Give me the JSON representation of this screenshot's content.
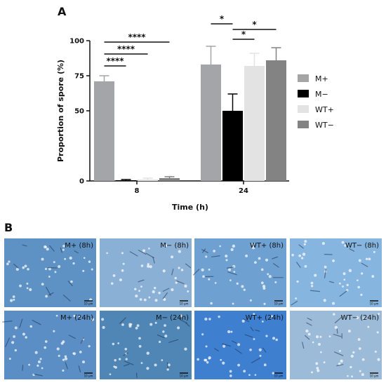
{
  "panel_a_label": "A",
  "panel_b_label": "B",
  "chart_data": {
    "type": "bar",
    "ylabel": "Proportion of spore (%)",
    "xlabel": "Time (h)",
    "categories": [
      "8",
      "24"
    ],
    "ylim": [
      0,
      100
    ],
    "yticks": [
      "0",
      "50",
      "75",
      "100"
    ],
    "yticks_values": [
      0,
      50,
      75,
      100
    ],
    "legend_position": "right",
    "series": [
      {
        "name": "M+",
        "values": [
          71,
          83
        ],
        "errors": [
          4,
          13
        ],
        "color": "#a3a5a8"
      },
      {
        "name": "M−",
        "values": [
          0.5,
          50
        ],
        "errors": [
          0.5,
          12
        ],
        "color": "#000000"
      },
      {
        "name": "WT+",
        "values": [
          1,
          82
        ],
        "errors": [
          1,
          9
        ],
        "color": "#e3e3e3"
      },
      {
        "name": "WT−",
        "values": [
          2,
          86
        ],
        "errors": [
          1,
          9
        ],
        "color": "#838383"
      }
    ],
    "significance": [
      {
        "label": "****",
        "group": "8",
        "from": "M+",
        "to": "M−"
      },
      {
        "label": "****",
        "group": "8",
        "from": "M+",
        "to": "WT+"
      },
      {
        "label": "****",
        "group": "8",
        "from": "M+",
        "to": "WT−"
      },
      {
        "label": "*",
        "group": "24",
        "from": "M+",
        "to": "M−"
      },
      {
        "label": "*",
        "group": "24",
        "from": "M−",
        "to": "WT+"
      },
      {
        "label": "*",
        "group": "24",
        "from": "M−",
        "to": "WT−"
      }
    ]
  },
  "micrographs": {
    "scale_text": "10 μm",
    "rows": [
      [
        {
          "label": "M+ (8h)",
          "color": "#5f92c4"
        },
        {
          "label": "M− (8h)",
          "color": "#8bb0d6"
        },
        {
          "label": "WT+ (8h)",
          "color": "#6ea1d2"
        },
        {
          "label": "WT− (8h)",
          "color": "#86b5df"
        }
      ],
      [
        {
          "label": "M+ (24h)",
          "color": "#5b8ec4"
        },
        {
          "label": "M− (24h)",
          "color": "#4f86b6"
        },
        {
          "label": "WT+ (24h)",
          "color": "#3f7fd0"
        },
        {
          "label": "WT− (24h)",
          "color": "#9bbbd8"
        }
      ]
    ]
  }
}
